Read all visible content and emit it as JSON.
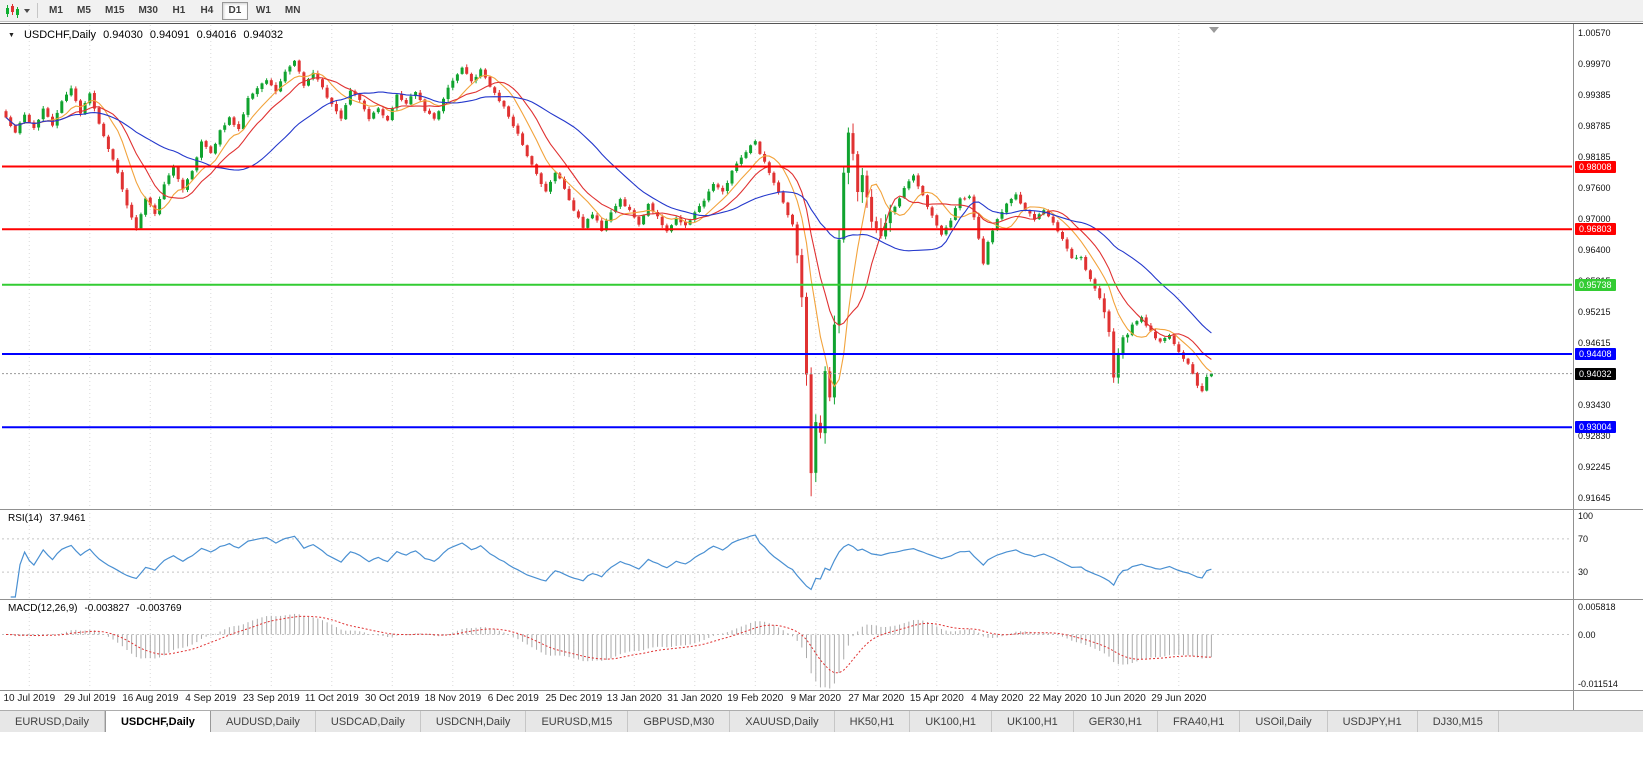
{
  "toolbar": {
    "timeframes": [
      {
        "label": "M1",
        "active": false
      },
      {
        "label": "M5",
        "active": false
      },
      {
        "label": "M15",
        "active": false
      },
      {
        "label": "M30",
        "active": false
      },
      {
        "label": "H1",
        "active": false
      },
      {
        "label": "H4",
        "active": false
      },
      {
        "label": "D1",
        "active": true
      },
      {
        "label": "W1",
        "active": false
      },
      {
        "label": "MN",
        "active": false
      }
    ]
  },
  "chart": {
    "title": {
      "symbol": "USDCHF,Daily",
      "open": "0.94030",
      "high": "0.94091",
      "low": "0.94016",
      "close": "0.94032"
    }
  },
  "indicators": {
    "rsi": {
      "name": "RSI(14)",
      "value": "37.9461",
      "levels": [
        100,
        70,
        30
      ],
      "line_color": "#4a90d2"
    },
    "macd": {
      "name": "MACD(12,26,9)",
      "value": "-0.003827",
      "signal": "-0.003769",
      "scale_max": "0.005818",
      "scale_zero": "0.00",
      "scale_min": "-0.011514",
      "histogram_color": "#ababab",
      "signal_color": "#e03232"
    }
  },
  "chart_data": {
    "type": "candlestick",
    "symbol": "USDCHF",
    "timeframe": "Daily",
    "ohlc_current": {
      "open": 0.9403,
      "high": 0.94091,
      "low": 0.94016,
      "close": 0.94032
    },
    "bars": 260,
    "price_range": {
      "top": 1.0057,
      "bottom": 0.91645
    },
    "y_axis_labels": [
      "1.00570",
      "0.99970",
      "0.99385",
      "0.98785",
      "0.98185",
      "0.97600",
      "0.97000",
      "0.96400",
      "0.95815",
      "0.95215",
      "0.94615",
      "0.94030",
      "0.93430",
      "0.92830",
      "0.92245",
      "0.91645"
    ],
    "date_ticks": {
      "bars": [
        5,
        18,
        31,
        44,
        57,
        70,
        83,
        96,
        109,
        122,
        135,
        148,
        161,
        174,
        187,
        200,
        213,
        226,
        239,
        252
      ],
      "labels": [
        "10 Jul 2019",
        "29 Jul 2019",
        "16 Aug 2019",
        "4 Sep 2019",
        "23 Sep 2019",
        "11 Oct 2019",
        "30 Oct 2019",
        "18 Nov 2019",
        "6 Dec 2019",
        "25 Dec 2019",
        "13 Jan 2020",
        "31 Jan 2020",
        "19 Feb 2020",
        "9 Mar 2020",
        "27 Mar 2020",
        "15 Apr 2020",
        "4 May 2020",
        "22 May 2020",
        "10 Jun 2020",
        "29 Jun 2020"
      ]
    },
    "close_anchors": [
      [
        0,
        0.9895
      ],
      [
        2,
        0.9868
      ],
      [
        4,
        0.99
      ],
      [
        6,
        0.9872
      ],
      [
        8,
        0.991
      ],
      [
        10,
        0.988
      ],
      [
        12,
        0.9925
      ],
      [
        14,
        0.9948
      ],
      [
        16,
        0.9905
      ],
      [
        18,
        0.9938
      ],
      [
        20,
        0.988
      ],
      [
        22,
        0.9835
      ],
      [
        24,
        0.9788
      ],
      [
        26,
        0.9725
      ],
      [
        28,
        0.968
      ],
      [
        30,
        0.9742
      ],
      [
        32,
        0.9712
      ],
      [
        34,
        0.9768
      ],
      [
        36,
        0.98
      ],
      [
        38,
        0.9755
      ],
      [
        40,
        0.9792
      ],
      [
        42,
        0.9846
      ],
      [
        44,
        0.9825
      ],
      [
        46,
        0.9868
      ],
      [
        48,
        0.9895
      ],
      [
        50,
        0.987
      ],
      [
        52,
        0.9935
      ],
      [
        54,
        0.9952
      ],
      [
        56,
        0.9968
      ],
      [
        58,
        0.9942
      ],
      [
        60,
        0.9985
      ],
      [
        62,
        1.0002
      ],
      [
        64,
        0.9958
      ],
      [
        66,
        0.998
      ],
      [
        68,
        0.995
      ],
      [
        70,
        0.992
      ],
      [
        72,
        0.9895
      ],
      [
        74,
        0.9945
      ],
      [
        76,
        0.9928
      ],
      [
        78,
        0.9892
      ],
      [
        80,
        0.9912
      ],
      [
        82,
        0.9888
      ],
      [
        84,
        0.994
      ],
      [
        86,
        0.9922
      ],
      [
        88,
        0.9945
      ],
      [
        90,
        0.9908
      ],
      [
        92,
        0.989
      ],
      [
        94,
        0.993
      ],
      [
        96,
        0.9968
      ],
      [
        98,
        0.999
      ],
      [
        100,
        0.9962
      ],
      [
        102,
        0.9985
      ],
      [
        104,
        0.9952
      ],
      [
        106,
        0.9928
      ],
      [
        108,
        0.9898
      ],
      [
        110,
        0.9862
      ],
      [
        112,
        0.9818
      ],
      [
        114,
        0.9785
      ],
      [
        116,
        0.9752
      ],
      [
        118,
        0.979
      ],
      [
        120,
        0.976
      ],
      [
        122,
        0.9718
      ],
      [
        124,
        0.9685
      ],
      [
        126,
        0.971
      ],
      [
        128,
        0.9678
      ],
      [
        130,
        0.9712
      ],
      [
        132,
        0.9738
      ],
      [
        134,
        0.9715
      ],
      [
        136,
        0.9692
      ],
      [
        138,
        0.9728
      ],
      [
        140,
        0.9705
      ],
      [
        142,
        0.9678
      ],
      [
        144,
        0.97
      ],
      [
        146,
        0.9686
      ],
      [
        148,
        0.9712
      ],
      [
        150,
        0.9738
      ],
      [
        152,
        0.9765
      ],
      [
        154,
        0.975
      ],
      [
        156,
        0.979
      ],
      [
        158,
        0.982
      ],
      [
        161,
        0.9848
      ],
      [
        163,
        0.9808
      ],
      [
        165,
        0.9768
      ],
      [
        167,
        0.9732
      ],
      [
        169,
        0.9688
      ],
      [
        170,
        0.9635
      ],
      [
        171,
        0.955
      ],
      [
        172,
        0.94
      ],
      [
        173,
        0.9215
      ],
      [
        174,
        0.932
      ],
      [
        175,
        0.928
      ],
      [
        176,
        0.94
      ],
      [
        177,
        0.935
      ],
      [
        178,
        0.95
      ],
      [
        179,
        0.966
      ],
      [
        180,
        0.98
      ],
      [
        181,
        0.9875
      ],
      [
        182,
        0.9815
      ],
      [
        183,
        0.9755
      ],
      [
        184,
        0.9795
      ],
      [
        185,
        0.974
      ],
      [
        186,
        0.9698
      ],
      [
        187,
        0.968
      ],
      [
        188,
        0.9665
      ],
      [
        189,
        0.969
      ],
      [
        191,
        0.9722
      ],
      [
        193,
        0.9758
      ],
      [
        195,
        0.9784
      ],
      [
        197,
        0.9744
      ],
      [
        199,
        0.9708
      ],
      [
        201,
        0.9668
      ],
      [
        203,
        0.97
      ],
      [
        205,
        0.974
      ],
      [
        207,
        0.9745
      ],
      [
        209,
        0.966
      ],
      [
        210,
        0.9612
      ],
      [
        211,
        0.9655
      ],
      [
        213,
        0.9698
      ],
      [
        215,
        0.9728
      ],
      [
        217,
        0.9744
      ],
      [
        219,
        0.9718
      ],
      [
        221,
        0.9698
      ],
      [
        223,
        0.9716
      ],
      [
        225,
        0.969
      ],
      [
        227,
        0.9662
      ],
      [
        229,
        0.9628
      ],
      [
        231,
        0.9625
      ],
      [
        233,
        0.9585
      ],
      [
        235,
        0.955
      ],
      [
        236,
        0.952
      ],
      [
        237,
        0.9478
      ],
      [
        238,
        0.9392
      ],
      [
        239,
        0.9438
      ],
      [
        240,
        0.9468
      ],
      [
        242,
        0.9498
      ],
      [
        244,
        0.9512
      ],
      [
        246,
        0.9482
      ],
      [
        248,
        0.9462
      ],
      [
        250,
        0.9476
      ],
      [
        252,
        0.9448
      ],
      [
        254,
        0.942
      ],
      [
        255,
        0.94
      ],
      [
        256,
        0.9378
      ],
      [
        257,
        0.9368
      ],
      [
        258,
        0.9398
      ],
      [
        259,
        0.94032
      ]
    ],
    "up_color": "#10a32f",
    "down_color": "#e03232",
    "moving_averages": [
      {
        "period": 8,
        "color": "#f2a33c"
      },
      {
        "period": 13,
        "color": "#e03232"
      },
      {
        "period": 30,
        "color": "#2438cc"
      }
    ],
    "h_lines": [
      {
        "price": 0.98008,
        "label": "0.98008",
        "color": "#ff0000"
      },
      {
        "price": 0.96803,
        "label": "0.96803",
        "color": "#ff0000"
      },
      {
        "price": 0.95738,
        "label": "0.95738",
        "color": "#33cc33"
      },
      {
        "price": 0.94408,
        "label": "0.94408",
        "color": "#0000ff"
      },
      {
        "price": 0.93004,
        "label": "0.93004",
        "color": "#0000ff"
      }
    ],
    "bid_line": {
      "price": 0.94032,
      "label": "0.94032",
      "line_color": "#9a9a9a",
      "box_color": "#000000"
    }
  },
  "tabs": [
    {
      "label": "EURUSD,Daily",
      "active": false
    },
    {
      "label": "USDCHF,Daily",
      "active": true
    },
    {
      "label": "AUDUSD,Daily",
      "active": false
    },
    {
      "label": "USDCAD,Daily",
      "active": false
    },
    {
      "label": "USDCNH,Daily",
      "active": false
    },
    {
      "label": "EURUSD,M15",
      "active": false
    },
    {
      "label": "GBPUSD,M30",
      "active": false
    },
    {
      "label": "XAUUSD,Daily",
      "active": false
    },
    {
      "label": "HK50,H1",
      "active": false
    },
    {
      "label": "UK100,H1",
      "active": false
    },
    {
      "label": "UK100,H1",
      "active": false
    },
    {
      "label": "GER30,H1",
      "active": false
    },
    {
      "label": "FRA40,H1",
      "active": false
    },
    {
      "label": "USOil,Daily",
      "active": false
    },
    {
      "label": "USDJPY,H1",
      "active": false
    },
    {
      "label": "DJ30,M15",
      "active": false
    }
  ]
}
